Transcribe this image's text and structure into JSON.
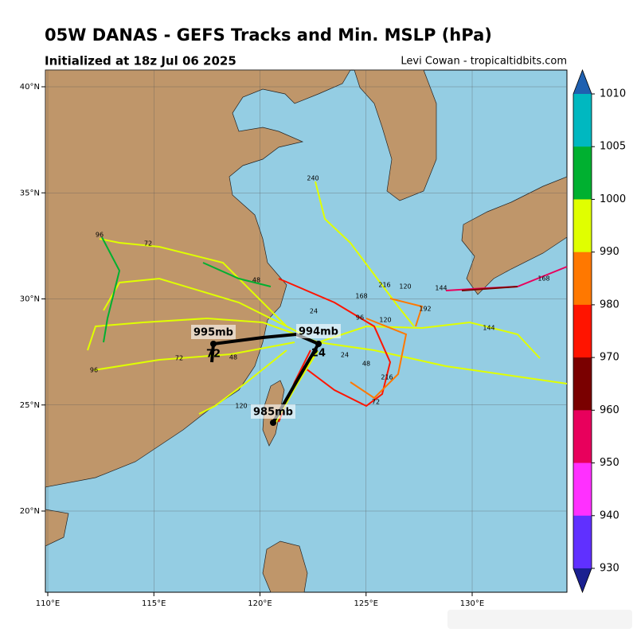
{
  "header": {
    "title": "05W DANAS - GEFS Tracks and Min. MSLP (hPa)",
    "subtitle": "Initialized at 18z Jul 06 2025",
    "credit": "Levi Cowan - tropicaltidbits.com"
  },
  "map": {
    "lon_ticks": [
      {
        "value": 110,
        "label": "110°E"
      },
      {
        "value": 115,
        "label": "115°E"
      },
      {
        "value": 120,
        "label": "120°E"
      },
      {
        "value": 125,
        "label": "125°E"
      },
      {
        "value": 130,
        "label": "130°E"
      }
    ],
    "lat_ticks": [
      {
        "value": 40,
        "label": "40°N"
      },
      {
        "value": 35,
        "label": "35°N"
      },
      {
        "value": 30,
        "label": "30°N"
      },
      {
        "value": 25,
        "label": "25°N"
      },
      {
        "value": 20,
        "label": "20°N"
      }
    ],
    "mean_labels": [
      "995mb",
      "994mb",
      "985mb",
      "72",
      "24"
    ],
    "track_labels": [
      "240",
      "216",
      "120",
      "144",
      "168",
      "192",
      "96",
      "72",
      "48",
      "24",
      "168",
      "144",
      "216",
      "120",
      "96",
      "72",
      "48",
      "24",
      "96",
      "72",
      "120",
      "48"
    ]
  },
  "colorbar": {
    "ticks": [
      1010,
      1005,
      1000,
      990,
      980,
      970,
      960,
      950,
      940,
      930
    ],
    "colors": [
      "#00b8c0",
      "#00b030",
      "#e0ff00",
      "#ff7800",
      "#ff1400",
      "#7a0000",
      "#e8005c",
      "#ff30ff",
      "#6030ff"
    ],
    "top_color": "#1f60b0",
    "bottom_color": "#1a2090"
  }
}
